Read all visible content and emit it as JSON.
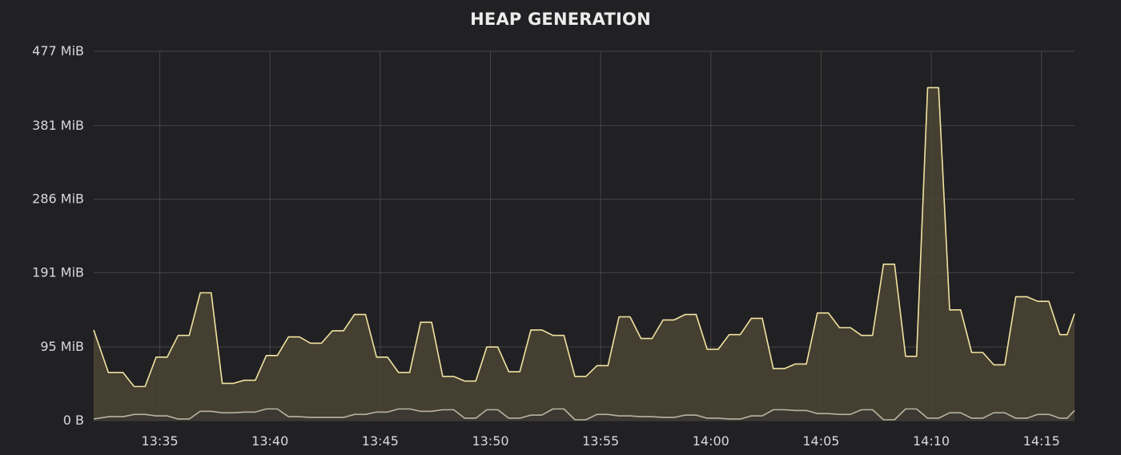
{
  "panel": {
    "title": "HEAP GENERATION"
  },
  "colors": {
    "background": "#212124",
    "grid": "#464646",
    "upper_series_line": "#f2e3a0",
    "upper_series_fill": "#4a4434",
    "lower_series_line": "#b9b3a0",
    "lower_series_fill": "#3b3933",
    "tick_text": "#d8d9da"
  },
  "chart_data": {
    "type": "area",
    "title": "HEAP GENERATION",
    "xlabel": "",
    "ylabel": "",
    "x_range": [
      "13:32",
      "14:16"
    ],
    "ylim": [
      0,
      477
    ],
    "y_unit": "MiB",
    "y_ticks": [
      {
        "value": 0,
        "label": "0 B"
      },
      {
        "value": 95,
        "label": "95 MiB"
      },
      {
        "value": 191,
        "label": "191 MiB"
      },
      {
        "value": 286,
        "label": "286 MiB"
      },
      {
        "value": 381,
        "label": "381 MiB"
      },
      {
        "value": 477,
        "label": "477 MiB"
      }
    ],
    "x_ticks": [
      "13:35",
      "13:40",
      "13:45",
      "13:50",
      "13:55",
      "14:00",
      "14:05",
      "14:10",
      "14:15"
    ],
    "grid": true,
    "legend": "none",
    "series": [
      {
        "points": [
          [
            "13:32",
            117
          ],
          [
            "13:32:40",
            62
          ],
          [
            "13:33:20",
            62
          ],
          [
            "13:33:50",
            44
          ],
          [
            "13:34:20",
            44
          ],
          [
            "13:34:50",
            82
          ],
          [
            "13:35:20",
            82
          ],
          [
            "13:35:50",
            110
          ],
          [
            "13:36:20",
            110
          ],
          [
            "13:36:50",
            165
          ],
          [
            "13:37:20",
            165
          ],
          [
            "13:37:50",
            48
          ],
          [
            "13:38:20",
            48
          ],
          [
            "13:38:50",
            52
          ],
          [
            "13:39:20",
            52
          ],
          [
            "13:39:50",
            84
          ],
          [
            "13:40:20",
            84
          ],
          [
            "13:40:50",
            108
          ],
          [
            "13:41:20",
            108
          ],
          [
            "13:41:50",
            100
          ],
          [
            "13:42:20",
            100
          ],
          [
            "13:42:50",
            116
          ],
          [
            "13:43:20",
            116
          ],
          [
            "13:43:50",
            137
          ],
          [
            "13:44:20",
            137
          ],
          [
            "13:44:50",
            82
          ],
          [
            "13:45:20",
            82
          ],
          [
            "13:45:50",
            62
          ],
          [
            "13:46:20",
            62
          ],
          [
            "13:46:50",
            127
          ],
          [
            "13:47:20",
            127
          ],
          [
            "13:47:50",
            57
          ],
          [
            "13:48:20",
            57
          ],
          [
            "13:48:50",
            51
          ],
          [
            "13:49:20",
            51
          ],
          [
            "13:49:50",
            95
          ],
          [
            "13:50:20",
            95
          ],
          [
            "13:50:50",
            63
          ],
          [
            "13:51:20",
            63
          ],
          [
            "13:51:50",
            117
          ],
          [
            "13:52:20",
            117
          ],
          [
            "13:52:50",
            110
          ],
          [
            "13:53:20",
            110
          ],
          [
            "13:53:50",
            57
          ],
          [
            "13:54:20",
            57
          ],
          [
            "13:54:50",
            71
          ],
          [
            "13:55:20",
            71
          ],
          [
            "13:55:50",
            134
          ],
          [
            "13:56:20",
            134
          ],
          [
            "13:56:50",
            106
          ],
          [
            "13:57:20",
            106
          ],
          [
            "13:57:50",
            130
          ],
          [
            "13:58:20",
            130
          ],
          [
            "13:58:50",
            137
          ],
          [
            "13:59:20",
            137
          ],
          [
            "13:59:50",
            92
          ],
          [
            "14:00:20",
            92
          ],
          [
            "14:00:50",
            111
          ],
          [
            "14:01:20",
            111
          ],
          [
            "14:01:50",
            132
          ],
          [
            "14:02:20",
            132
          ],
          [
            "14:02:50",
            67
          ],
          [
            "14:03:20",
            67
          ],
          [
            "14:03:50",
            73
          ],
          [
            "14:04:20",
            73
          ],
          [
            "14:04:50",
            139
          ],
          [
            "14:05:20",
            139
          ],
          [
            "14:05:50",
            120
          ],
          [
            "14:06:20",
            120
          ],
          [
            "14:06:50",
            110
          ],
          [
            "14:07:20",
            110
          ],
          [
            "14:07:50",
            202
          ],
          [
            "14:08:20",
            202
          ],
          [
            "14:08:50",
            83
          ],
          [
            "14:09:20",
            83
          ],
          [
            "14:09:50",
            430
          ],
          [
            "14:10:20",
            430
          ],
          [
            "14:10:50",
            143
          ],
          [
            "14:11:20",
            143
          ],
          [
            "14:11:50",
            88
          ],
          [
            "14:12:20",
            88
          ],
          [
            "14:12:50",
            72
          ],
          [
            "14:13:20",
            72
          ],
          [
            "14:13:50",
            160
          ],
          [
            "14:14:20",
            160
          ],
          [
            "14:14:50",
            154
          ],
          [
            "14:15:20",
            154
          ],
          [
            "14:15:50",
            111
          ],
          [
            "14:16:10",
            111
          ],
          [
            "14:16:30",
            138
          ]
        ]
      },
      {
        "points": [
          [
            "13:32",
            2
          ],
          [
            "13:32:40",
            5
          ],
          [
            "13:33:20",
            5
          ],
          [
            "13:33:50",
            8
          ],
          [
            "13:34:20",
            8
          ],
          [
            "13:34:50",
            6
          ],
          [
            "13:35:20",
            6
          ],
          [
            "13:35:50",
            2
          ],
          [
            "13:36:20",
            2
          ],
          [
            "13:36:50",
            12
          ],
          [
            "13:37:20",
            12
          ],
          [
            "13:37:50",
            10
          ],
          [
            "13:38:20",
            10
          ],
          [
            "13:38:50",
            11
          ],
          [
            "13:39:20",
            11
          ],
          [
            "13:39:50",
            15
          ],
          [
            "13:40:20",
            15
          ],
          [
            "13:40:50",
            5
          ],
          [
            "13:41:20",
            5
          ],
          [
            "13:41:50",
            4
          ],
          [
            "13:42:20",
            4
          ],
          [
            "13:42:50",
            4
          ],
          [
            "13:43:20",
            4
          ],
          [
            "13:43:50",
            8
          ],
          [
            "13:44:20",
            8
          ],
          [
            "13:44:50",
            11
          ],
          [
            "13:45:20",
            11
          ],
          [
            "13:45:50",
            15
          ],
          [
            "13:46:20",
            15
          ],
          [
            "13:46:50",
            12
          ],
          [
            "13:47:20",
            12
          ],
          [
            "13:47:50",
            14
          ],
          [
            "13:48:20",
            14
          ],
          [
            "13:48:50",
            3
          ],
          [
            "13:49:20",
            3
          ],
          [
            "13:49:50",
            14
          ],
          [
            "13:50:20",
            14
          ],
          [
            "13:50:50",
            3
          ],
          [
            "13:51:20",
            3
          ],
          [
            "13:51:50",
            7
          ],
          [
            "13:52:20",
            7
          ],
          [
            "13:52:50",
            15
          ],
          [
            "13:53:20",
            15
          ],
          [
            "13:53:50",
            1
          ],
          [
            "13:54:20",
            1
          ],
          [
            "13:54:50",
            8
          ],
          [
            "13:55:20",
            8
          ],
          [
            "13:55:50",
            6
          ],
          [
            "13:56:20",
            6
          ],
          [
            "13:56:50",
            5
          ],
          [
            "13:57:20",
            5
          ],
          [
            "13:57:50",
            4
          ],
          [
            "13:58:20",
            4
          ],
          [
            "13:58:50",
            7
          ],
          [
            "13:59:20",
            7
          ],
          [
            "13:59:50",
            3
          ],
          [
            "14:00:20",
            3
          ],
          [
            "14:00:50",
            2
          ],
          [
            "14:01:20",
            2
          ],
          [
            "14:01:50",
            6
          ],
          [
            "14:02:20",
            6
          ],
          [
            "14:02:50",
            14
          ],
          [
            "14:03:20",
            14
          ],
          [
            "14:03:50",
            13
          ],
          [
            "14:04:20",
            13
          ],
          [
            "14:04:50",
            9
          ],
          [
            "14:05:20",
            9
          ],
          [
            "14:05:50",
            8
          ],
          [
            "14:06:20",
            8
          ],
          [
            "14:06:50",
            14
          ],
          [
            "14:07:20",
            14
          ],
          [
            "14:07:50",
            1
          ],
          [
            "14:08:20",
            1
          ],
          [
            "14:08:50",
            15
          ],
          [
            "14:09:20",
            15
          ],
          [
            "14:09:50",
            3
          ],
          [
            "14:10:20",
            3
          ],
          [
            "14:10:50",
            10
          ],
          [
            "14:11:20",
            10
          ],
          [
            "14:11:50",
            3
          ],
          [
            "14:12:20",
            3
          ],
          [
            "14:12:50",
            10
          ],
          [
            "14:13:20",
            10
          ],
          [
            "14:13:50",
            3
          ],
          [
            "14:14:20",
            3
          ],
          [
            "14:14:50",
            8
          ],
          [
            "14:15:20",
            8
          ],
          [
            "14:15:50",
            3
          ],
          [
            "14:16:10",
            3
          ],
          [
            "14:16:30",
            13
          ]
        ]
      }
    ]
  }
}
